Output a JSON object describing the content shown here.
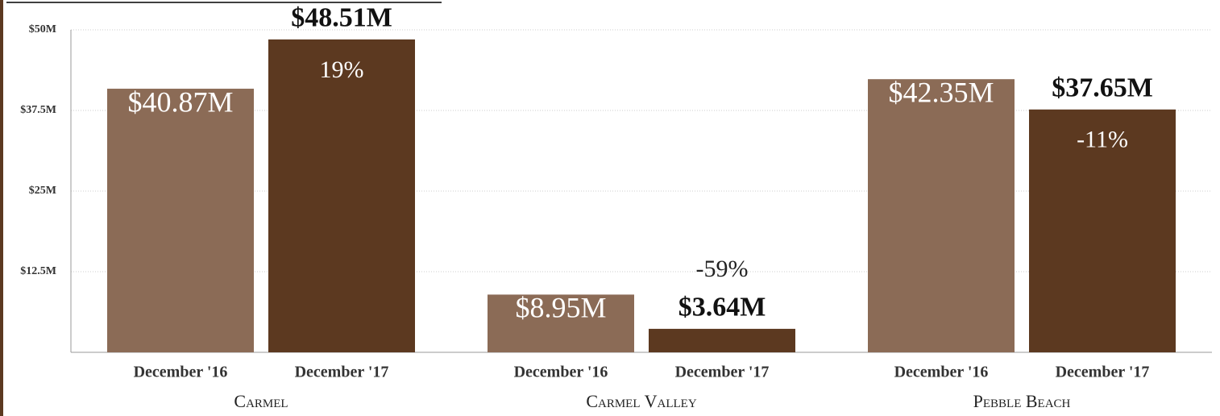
{
  "chart_data": {
    "type": "bar",
    "categories": [
      "Carmel",
      "Carmel Valley",
      "Pebble Beach"
    ],
    "series": [
      {
        "name": "December '16",
        "color": "#8b6b56",
        "values": [
          40.87,
          8.95,
          42.35
        ],
        "value_labels": [
          "$40.87M",
          "$8.95M",
          "$42.35M"
        ]
      },
      {
        "name": "December '17",
        "color": "#5c3920",
        "values": [
          48.51,
          3.64,
          37.65
        ],
        "value_labels": [
          "$48.51M",
          "$3.64M",
          "$37.65M"
        ],
        "annotations": [
          "19%",
          "-59%",
          "-11%"
        ]
      }
    ],
    "ylim": [
      0,
      50
    ],
    "yticks": [
      {
        "value": 12.5,
        "label": "$12.5M"
      },
      {
        "value": 25,
        "label": "$25M"
      },
      {
        "value": 37.5,
        "label": "$37.5M"
      },
      {
        "value": 50,
        "label": "$50M"
      }
    ],
    "grid": true
  }
}
